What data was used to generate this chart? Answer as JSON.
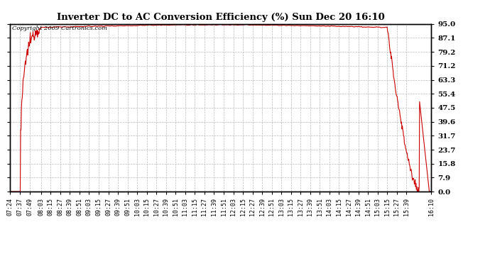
{
  "title": "Inverter DC to AC Conversion Efficiency (%) Sun Dec 20 16:10",
  "copyright_text": "Copyright 2009 Cartronics.com",
  "line_color": "#cc0000",
  "background_color": "#ffffff",
  "plot_background": "#ffffff",
  "grid_color": "#bbbbbb",
  "ylim": [
    0.0,
    95.0
  ],
  "ytick_values": [
    0.0,
    7.9,
    15.8,
    23.7,
    31.7,
    39.6,
    47.5,
    55.4,
    63.3,
    71.2,
    79.2,
    87.1,
    95.0
  ],
  "x_tick_labels": [
    "07:24",
    "07:37",
    "07:49",
    "08:03",
    "08:15",
    "08:27",
    "08:39",
    "08:51",
    "09:03",
    "09:15",
    "09:27",
    "09:39",
    "09:51",
    "10:03",
    "10:15",
    "10:27",
    "10:39",
    "10:51",
    "11:03",
    "11:15",
    "11:27",
    "11:39",
    "11:51",
    "12:03",
    "12:15",
    "12:27",
    "12:39",
    "12:51",
    "13:03",
    "13:15",
    "13:27",
    "13:39",
    "13:51",
    "14:03",
    "14:15",
    "14:27",
    "14:39",
    "14:51",
    "15:03",
    "15:15",
    "15:27",
    "15:39",
    "16:10"
  ],
  "figsize": [
    6.9,
    3.75
  ],
  "dpi": 100
}
